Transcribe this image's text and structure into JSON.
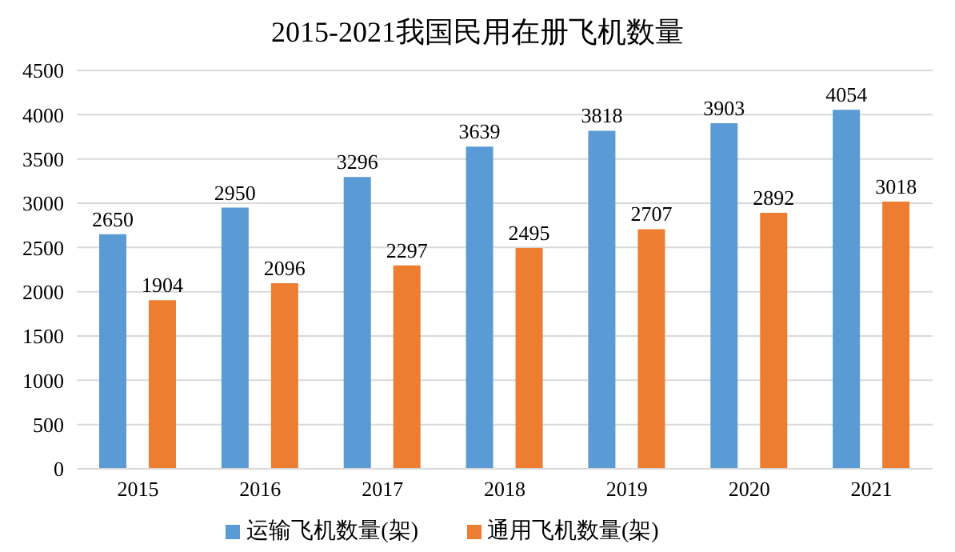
{
  "chart_data": {
    "type": "bar",
    "title": "2015-2021我国民用在册飞机数量",
    "categories": [
      "2015",
      "2016",
      "2017",
      "2018",
      "2019",
      "2020",
      "2021"
    ],
    "series": [
      {
        "name": "运输飞机数量(架)",
        "color": "#5b9bd5",
        "values": [
          2650,
          2950,
          3296,
          3639,
          3818,
          3903,
          4054
        ]
      },
      {
        "name": "通用飞机数量(架)",
        "color": "#ed7d31",
        "values": [
          1904,
          2096,
          2297,
          2495,
          2707,
          2892,
          3018
        ]
      }
    ],
    "ylim": [
      0,
      4500
    ],
    "yticks": [
      0,
      500,
      1000,
      1500,
      2000,
      2500,
      3000,
      3500,
      4000,
      4500
    ],
    "grid": "y",
    "legend": "bottom",
    "data_labels": true
  }
}
